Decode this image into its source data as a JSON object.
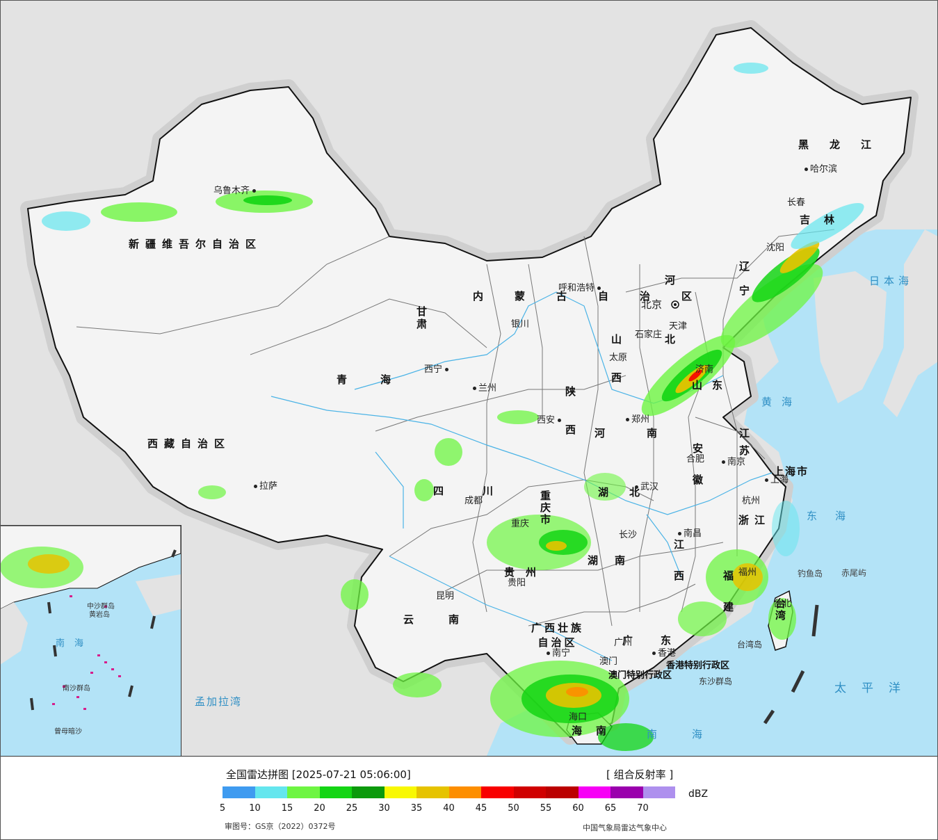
{
  "legend": {
    "title": "全国雷达拼图 [2025-07-21 05:06:00]",
    "mode": "[ 组合反射率 ]",
    "unit": "dBZ",
    "ticks": [
      "5",
      "10",
      "15",
      "20",
      "25",
      "30",
      "35",
      "40",
      "45",
      "50",
      "55",
      "60",
      "65",
      "70"
    ],
    "colors": [
      "#3f9bf0",
      "#64e6ee",
      "#6ef542",
      "#14d514",
      "#0c9a0c",
      "#f8f803",
      "#e6c300",
      "#fd8e00",
      "#f80000",
      "#d00000",
      "#bb0000",
      "#f700f6",
      "#9a00ad",
      "#ae90ee"
    ],
    "review_no": "审图号：GS京（2022）0372号",
    "source": "中国气象局雷达气象中心"
  },
  "cities": {
    "urumqi": "乌鲁木齐",
    "lhasa": "拉萨",
    "xining": "西宁",
    "lanzhou": "兰州",
    "yinchuan": "银川",
    "hohhot": "呼和浩特",
    "beijing": "北京",
    "tianjin": "天津",
    "shijiazhuang": "石家庄",
    "taiyuan": "太原",
    "xian": "西安",
    "zhengzhou": "郑州",
    "hefei": "合肥",
    "nanjing": "南京",
    "shanghai": "上海",
    "hangzhou": "杭州",
    "wuhan": "武汉",
    "changsha": "长沙",
    "nanchang": "南昌",
    "fuzhou": "福州",
    "chengdu": "成都",
    "chongqing": "重庆",
    "guiyang": "贵阳",
    "kunming": "昆明",
    "nanning": "南宁",
    "guangzhou": "广州",
    "haikou": "海口",
    "harbin": "哈尔滨",
    "changchun": "长春",
    "shenyang": "沈阳",
    "jinan": "济南",
    "macau": "澳门",
    "hongkong": "香港",
    "taipei": "台北"
  },
  "regions": {
    "xinjiang": "新疆维吾尔自治区",
    "tibet": "西藏自治区",
    "qinghai": "青海",
    "gansu": "甘肃",
    "sichuan": "四川",
    "yunnan": "云南",
    "guangxi": "广西壮族自治区",
    "guangdong": "广东",
    "hunan": "湖南",
    "hubei": "湖北",
    "henan": "河南",
    "shaanxi": "陕西",
    "shanxi": "山西",
    "hebei": "河北",
    "shandong": "山东",
    "jiangsu": "江苏",
    "anhui": "安徽",
    "zhejiang": "浙江",
    "jiangxi": "江西",
    "fujian": "福建",
    "heilongjiang": "黑龙江",
    "jilin": "吉林",
    "liaoning": "辽宁",
    "neimenggu": "内蒙古自治区",
    "guizhou": "贵州",
    "taiwan": "台湾",
    "hainan": "海南",
    "shanghai_city": "上海市",
    "chongqing_city": "重庆市",
    "hk_sar": "香港特别行政区",
    "macau_sar": "澳门特别行政区"
  },
  "seas": {
    "japan_sea": "日本海",
    "yellow_sea": "黄海",
    "east_sea": "东海",
    "pacific": "太平洋",
    "south_sea": "南海",
    "bengal": "孟加拉湾",
    "diaoyu": "钓鱼岛",
    "chiwei": "赤尾屿",
    "dongsha": "东沙群岛",
    "taiwan_island": "台湾岛"
  },
  "inset": {
    "south_sea": "南海",
    "zhongsha": "中沙群岛",
    "huangyan": "黄岩岛",
    "nansha": "南沙群岛",
    "zengmu": "曾母暗沙"
  }
}
